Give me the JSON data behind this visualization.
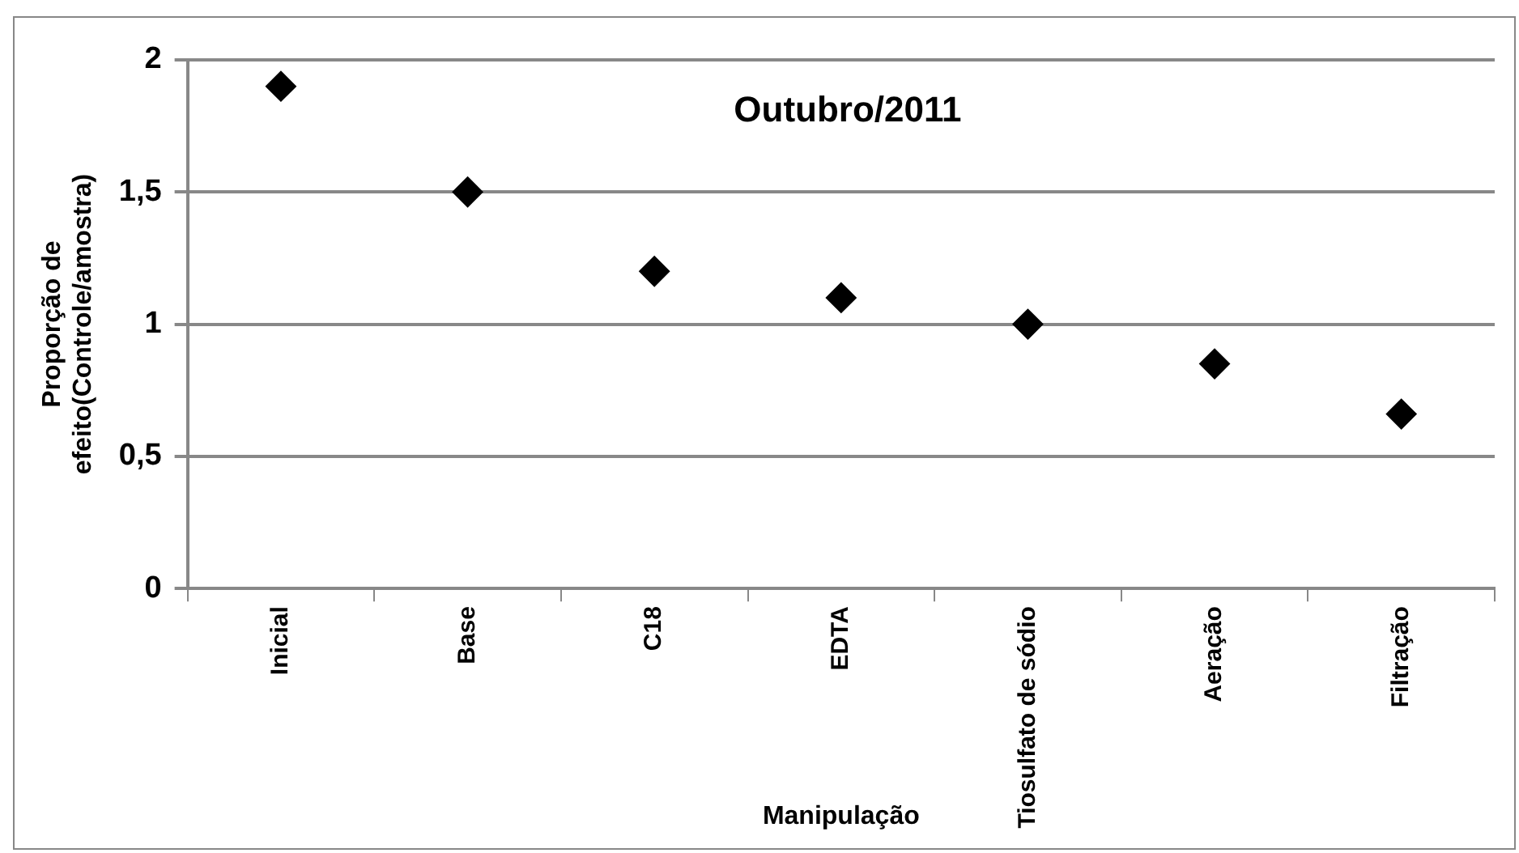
{
  "chart_data": {
    "type": "scatter",
    "title": "Outubro/2011",
    "xlabel": "Manipulação",
    "ylabel": "Proporção de efeito(Controle/amostra)",
    "categories": [
      "Inicial",
      "Base",
      "C18",
      "EDTA",
      "Tiosulfato de sódio",
      "Aeração",
      "Filtração"
    ],
    "series": [
      {
        "color": "#000000",
        "values": [
          1.9,
          1.5,
          1.2,
          1.1,
          1.0,
          0.85,
          0.66
        ]
      }
    ],
    "ylim": [
      0,
      2
    ],
    "yticks": [
      {
        "value": 0,
        "label": "0"
      },
      {
        "value": 0.5,
        "label": "0,5"
      },
      {
        "value": 1,
        "label": "1"
      },
      {
        "value": 1.5,
        "label": "1,5"
      },
      {
        "value": 2,
        "label": "2"
      }
    ],
    "grid": "y",
    "legend": false,
    "marker": "diamond"
  }
}
